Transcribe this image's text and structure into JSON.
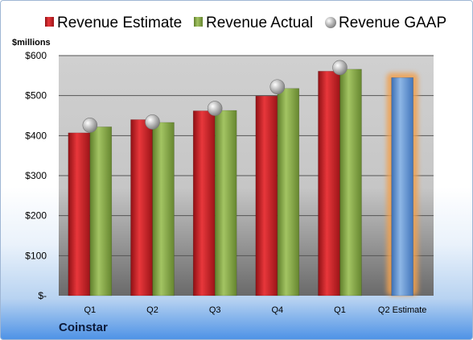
{
  "company": "Coinstar",
  "chart_data": {
    "type": "bar",
    "unit_label": "$millions",
    "categories": [
      "Q1",
      "Q2",
      "Q3",
      "Q4",
      "Q1",
      "Q2 Estimate"
    ],
    "y_ticks": [
      "$-",
      "$100",
      "$200",
      "$300",
      "$400",
      "$500",
      "$600"
    ],
    "ylim": [
      0,
      600
    ],
    "grid": true,
    "legend_position": "top",
    "series": [
      {
        "name": "Revenue Estimate",
        "type": "bar",
        "color": "#d8262b",
        "values": [
          407,
          440,
          462,
          499,
          561,
          null
        ]
      },
      {
        "name": "Revenue Actual",
        "type": "bar",
        "color": "#8fb04a",
        "values": [
          422,
          433,
          463,
          518,
          566,
          null
        ]
      },
      {
        "name": "Revenue GAAP",
        "type": "marker",
        "color": "#c0c0c0",
        "values": [
          426,
          434,
          468,
          522,
          570,
          null
        ]
      }
    ],
    "estimate": {
      "category": "Q2 Estimate",
      "value": 545,
      "color": "#6f9fd8",
      "highlight": "#f0a050"
    }
  }
}
